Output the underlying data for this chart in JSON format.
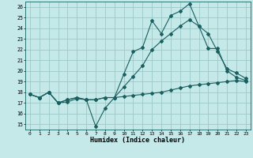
{
  "xlabel": "Humidex (Indice chaleur)",
  "bg_color": "#c5e8e8",
  "grid_color": "#9dc8c8",
  "line_color": "#1a6060",
  "xlim": [
    -0.5,
    23.5
  ],
  "ylim": [
    14.5,
    26.5
  ],
  "yticks": [
    15,
    16,
    17,
    18,
    19,
    20,
    21,
    22,
    23,
    24,
    25,
    26
  ],
  "xticks": [
    0,
    1,
    2,
    3,
    4,
    5,
    6,
    7,
    8,
    9,
    10,
    11,
    12,
    13,
    14,
    15,
    16,
    17,
    18,
    19,
    20,
    21,
    22,
    23
  ],
  "line1_x": [
    0,
    1,
    2,
    3,
    4,
    5,
    6,
    7,
    8,
    9,
    10,
    11,
    12,
    13,
    14,
    15,
    16,
    17,
    18,
    19,
    20,
    21,
    22,
    23
  ],
  "line1_y": [
    17.8,
    17.5,
    18.0,
    17.0,
    17.1,
    17.4,
    17.3,
    14.8,
    16.5,
    17.5,
    19.7,
    21.8,
    22.2,
    24.7,
    23.5,
    25.2,
    25.6,
    26.3,
    24.2,
    22.1,
    22.1,
    20.0,
    19.4,
    19.1
  ],
  "line2_x": [
    0,
    1,
    2,
    3,
    4,
    5,
    6,
    7,
    8,
    9,
    10,
    11,
    12,
    13,
    14,
    15,
    16,
    17,
    18,
    19,
    20,
    21,
    22,
    23
  ],
  "line2_y": [
    17.8,
    17.5,
    18.0,
    17.0,
    17.3,
    17.5,
    17.3,
    17.3,
    17.5,
    17.5,
    18.5,
    19.5,
    20.5,
    22.0,
    22.8,
    23.5,
    24.2,
    24.8,
    24.2,
    23.5,
    21.8,
    20.2,
    19.8,
    19.3
  ],
  "line3_x": [
    0,
    1,
    2,
    3,
    4,
    5,
    6,
    7,
    8,
    9,
    10,
    11,
    12,
    13,
    14,
    15,
    16,
    17,
    18,
    19,
    20,
    21,
    22,
    23
  ],
  "line3_y": [
    17.8,
    17.5,
    18.0,
    17.0,
    17.3,
    17.5,
    17.3,
    17.3,
    17.5,
    17.5,
    17.6,
    17.7,
    17.8,
    17.9,
    18.0,
    18.2,
    18.4,
    18.6,
    18.7,
    18.8,
    18.9,
    19.0,
    19.1,
    19.0
  ]
}
